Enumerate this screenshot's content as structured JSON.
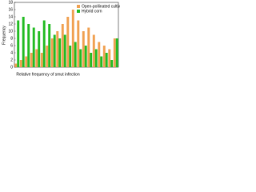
{
  "chart_data": {
    "type": "bar",
    "xlabel": "Relative frequency of smut infection",
    "ylabel": "Frequency",
    "categories": [
      null,
      null,
      null,
      null,
      null,
      null,
      null,
      null,
      null,
      null,
      null,
      null,
      null,
      null,
      null,
      null,
      null,
      null,
      null,
      null
    ],
    "series": [
      {
        "name": "Open-pollinated cultivars",
        "color": "#f0a050",
        "values": [
          1,
          2,
          3,
          4,
          5,
          4,
          6,
          8,
          10,
          12,
          14,
          16,
          13,
          10,
          11,
          9,
          7,
          6,
          5,
          8
        ]
      },
      {
        "name": "Hybrid corn",
        "color": "#22bb22",
        "values": [
          13,
          14,
          12,
          11,
          10,
          13,
          12,
          9,
          8,
          9,
          6,
          7,
          5,
          6,
          4,
          5,
          3,
          4,
          2,
          8
        ]
      }
    ],
    "ylim": [
      0,
      18
    ],
    "yticks": [
      0,
      2,
      4,
      6,
      8,
      10,
      12,
      14,
      16,
      18
    ],
    "legend": "upper right"
  }
}
